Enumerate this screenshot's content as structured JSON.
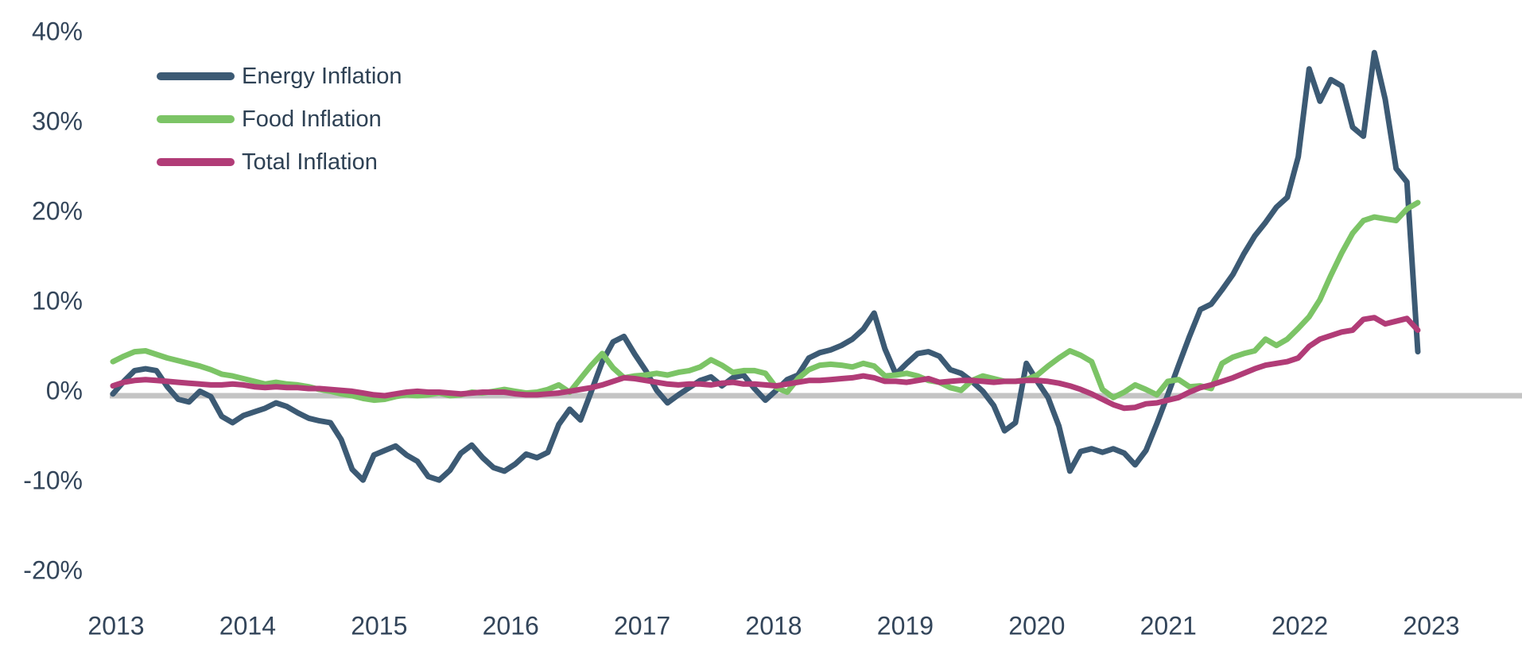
{
  "chart_data": {
    "type": "line",
    "title": "",
    "frequency": "monthly",
    "period": "Jan 2013 - Jan 2023",
    "x_tick_labels": [
      "2013",
      "2014",
      "2015",
      "2016",
      "2017",
      "2018",
      "2019",
      "2020",
      "2021",
      "2022",
      "2023"
    ],
    "y_tick_labels": [
      "40%",
      "30%",
      "20%",
      "10%",
      "0%",
      "-10%",
      "-20%"
    ],
    "y_tick_values": [
      40,
      30,
      20,
      10,
      0,
      -10,
      -20
    ],
    "ylim": [
      -20,
      40
    ],
    "grid": "none",
    "zero_baseline": true,
    "zero_line_color": "#c4c4c4",
    "axis_text_color": "#33455a",
    "legend_position": "top-left",
    "series": [
      {
        "name": "Energy Inflation",
        "color": "#3c5a74",
        "values": [
          0.2,
          1.6,
          2.8,
          3.0,
          2.8,
          1.0,
          -0.4,
          -0.7,
          0.5,
          -0.1,
          -2.3,
          -3.0,
          -2.2,
          -1.8,
          -1.4,
          -0.8,
          -1.2,
          -1.9,
          -2.5,
          -2.8,
          -3.0,
          -4.9,
          -8.2,
          -9.4,
          -6.6,
          -6.1,
          -5.6,
          -6.6,
          -7.3,
          -9.0,
          -9.4,
          -8.3,
          -6.4,
          -5.5,
          -6.9,
          -8.0,
          -8.4,
          -7.6,
          -6.5,
          -6.9,
          -6.3,
          -3.2,
          -1.5,
          -2.7,
          0.5,
          3.8,
          6.0,
          6.6,
          4.6,
          2.8,
          0.6,
          -0.8,
          0.1,
          0.9,
          1.7,
          2.1,
          1.1,
          2.0,
          2.3,
          0.8,
          -0.5,
          0.6,
          1.8,
          2.3,
          4.2,
          4.8,
          5.1,
          5.6,
          6.3,
          7.4,
          9.2,
          5.2,
          2.4,
          3.6,
          4.7,
          4.9,
          4.4,
          2.9,
          2.5,
          1.6,
          0.5,
          -1.1,
          -3.9,
          -3.0,
          3.6,
          1.6,
          -0.2,
          -3.4,
          -8.4,
          -6.2,
          -5.9,
          -6.3,
          -5.9,
          -6.4,
          -7.7,
          -6.1,
          -3.1,
          0.1,
          3.4,
          6.6,
          9.6,
          10.2,
          11.8,
          13.5,
          15.8,
          17.8,
          19.3,
          21.0,
          22.1,
          26.6,
          36.4,
          32.8,
          35.2,
          34.5,
          29.9,
          28.9,
          38.2,
          33.0,
          25.3,
          23.8,
          4.9
        ]
      },
      {
        "name": "Food Inflation",
        "color": "#7cc466",
        "values": [
          3.8,
          4.4,
          4.9,
          5.0,
          4.6,
          4.2,
          3.9,
          3.6,
          3.3,
          2.9,
          2.4,
          2.2,
          1.9,
          1.6,
          1.3,
          1.5,
          1.3,
          1.2,
          1.0,
          0.7,
          0.5,
          0.2,
          0.0,
          -0.3,
          -0.5,
          -0.4,
          -0.1,
          0.1,
          0.0,
          0.1,
          0.3,
          0.0,
          0.1,
          0.4,
          0.3,
          0.5,
          0.7,
          0.5,
          0.3,
          0.4,
          0.7,
          1.2,
          0.4,
          1.9,
          3.4,
          4.7,
          3.1,
          2.0,
          2.2,
          2.3,
          2.5,
          2.3,
          2.6,
          2.8,
          3.2,
          4.0,
          3.4,
          2.6,
          2.8,
          2.8,
          2.5,
          0.9,
          0.4,
          1.9,
          2.9,
          3.4,
          3.5,
          3.4,
          3.2,
          3.6,
          3.3,
          2.2,
          2.3,
          2.5,
          2.2,
          1.7,
          1.5,
          0.9,
          0.6,
          1.7,
          2.2,
          1.9,
          1.6,
          1.6,
          1.8,
          2.3,
          3.3,
          4.2,
          5.0,
          4.5,
          3.8,
          0.7,
          -0.2,
          0.4,
          1.2,
          0.7,
          0.1,
          1.6,
          1.8,
          1.0,
          1.1,
          0.8,
          3.6,
          4.3,
          4.7,
          5.0,
          6.3,
          5.6,
          6.3,
          7.5,
          8.8,
          10.7,
          13.4,
          15.9,
          18.1,
          19.5,
          19.9,
          19.7,
          19.5,
          20.8,
          21.5
        ]
      },
      {
        "name": "Total Inflation",
        "color": "#b13c77",
        "values": [
          1.1,
          1.5,
          1.7,
          1.8,
          1.7,
          1.6,
          1.5,
          1.4,
          1.3,
          1.2,
          1.2,
          1.3,
          1.2,
          1.0,
          0.9,
          1.0,
          0.9,
          0.9,
          0.8,
          0.8,
          0.7,
          0.6,
          0.5,
          0.3,
          0.1,
          0.0,
          0.2,
          0.4,
          0.5,
          0.4,
          0.4,
          0.3,
          0.2,
          0.3,
          0.4,
          0.4,
          0.4,
          0.2,
          0.1,
          0.1,
          0.2,
          0.3,
          0.5,
          0.7,
          0.9,
          1.2,
          1.6,
          2.0,
          1.9,
          1.7,
          1.5,
          1.3,
          1.2,
          1.3,
          1.3,
          1.2,
          1.4,
          1.5,
          1.3,
          1.3,
          1.2,
          1.1,
          1.3,
          1.5,
          1.7,
          1.7,
          1.8,
          1.9,
          2.0,
          2.2,
          2.0,
          1.6,
          1.6,
          1.5,
          1.7,
          1.9,
          1.5,
          1.6,
          1.7,
          1.7,
          1.6,
          1.5,
          1.6,
          1.6,
          1.7,
          1.7,
          1.6,
          1.4,
          1.1,
          0.7,
          0.2,
          -0.4,
          -1.0,
          -1.4,
          -1.3,
          -0.9,
          -0.8,
          -0.5,
          -0.2,
          0.4,
          0.9,
          1.2,
          1.6,
          2.0,
          2.5,
          3.0,
          3.4,
          3.6,
          3.8,
          4.2,
          5.5,
          6.3,
          6.7,
          7.1,
          7.3,
          8.5,
          8.7,
          8.0,
          8.3,
          8.6,
          7.3
        ]
      }
    ]
  }
}
